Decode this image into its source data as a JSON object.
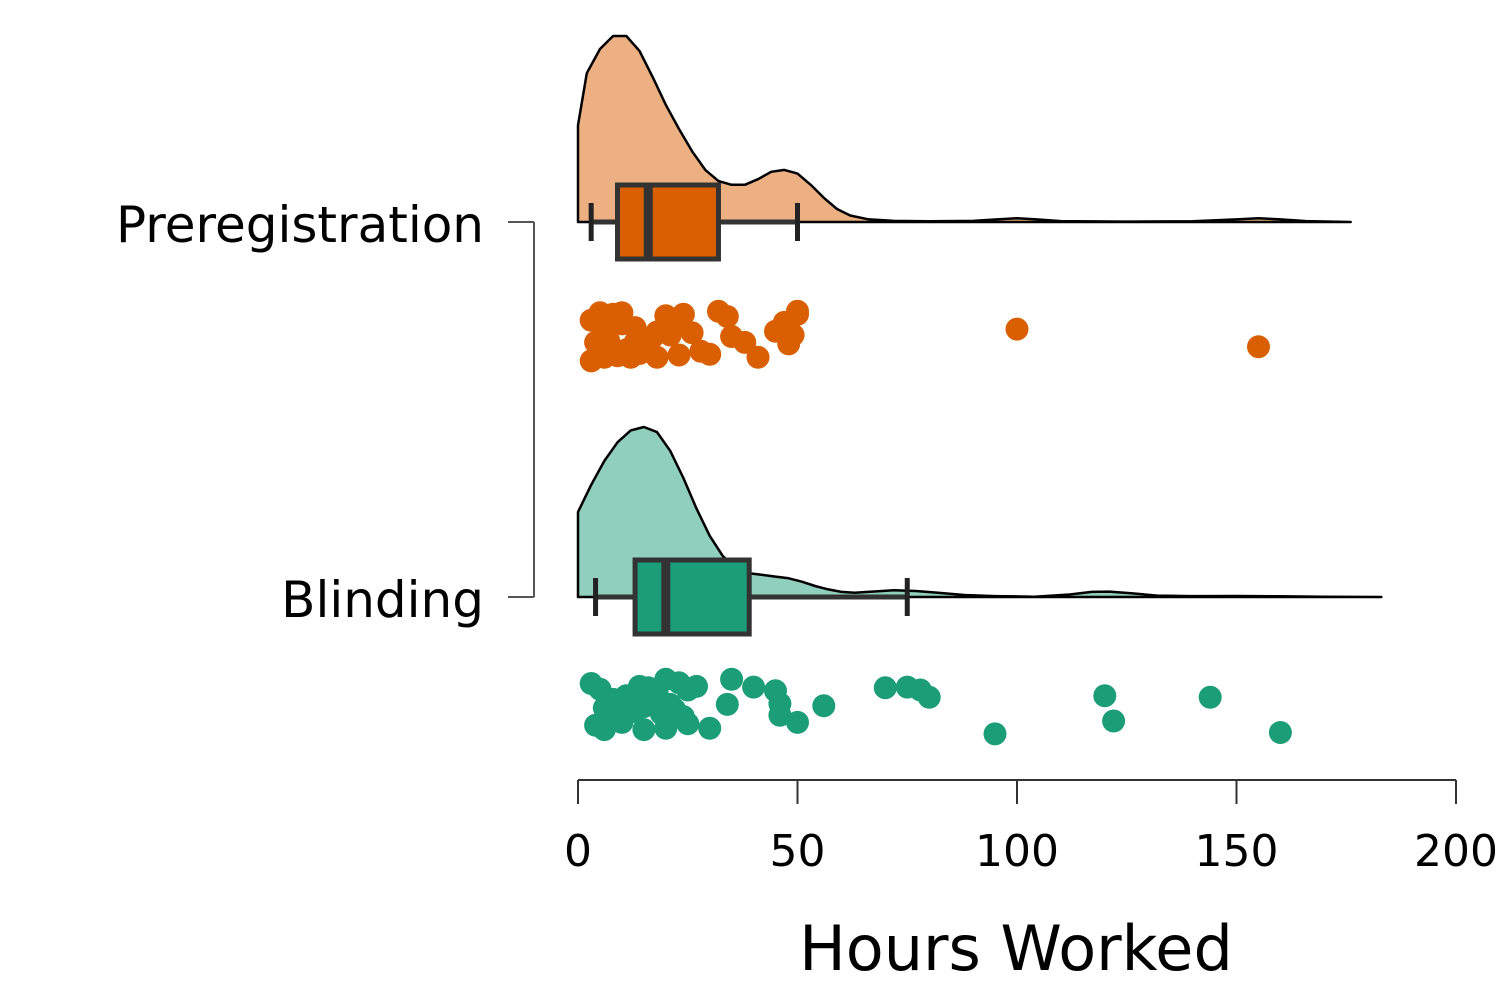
{
  "chart_data": {
    "type": "raincloud",
    "xlabel": "Hours Worked",
    "xlim": [
      0,
      200
    ],
    "xticks": [
      0,
      50,
      100,
      150,
      200
    ],
    "groups": [
      {
        "name": "Preregistration",
        "fill": "#d95f02",
        "cloud_fill": "#ecb083",
        "box": {
          "whisker_low": 3,
          "q1": 9,
          "median": 16,
          "q3": 32,
          "whisker_high": 50,
          "mean": 14
        },
        "density": [
          [
            0,
            0.52
          ],
          [
            2,
            0.8
          ],
          [
            5,
            0.93
          ],
          [
            8,
            1.0
          ],
          [
            11,
            1.0
          ],
          [
            14,
            0.92
          ],
          [
            17,
            0.78
          ],
          [
            20,
            0.63
          ],
          [
            23,
            0.5
          ],
          [
            26,
            0.38
          ],
          [
            29,
            0.28
          ],
          [
            32,
            0.22
          ],
          [
            35,
            0.2
          ],
          [
            38,
            0.2
          ],
          [
            41,
            0.23
          ],
          [
            44,
            0.27
          ],
          [
            47,
            0.28
          ],
          [
            50,
            0.26
          ],
          [
            53,
            0.2
          ],
          [
            56,
            0.13
          ],
          [
            59,
            0.07
          ],
          [
            62,
            0.035
          ],
          [
            66,
            0.015
          ],
          [
            72,
            0.006
          ],
          [
            80,
            0.004
          ],
          [
            90,
            0.006
          ],
          [
            96,
            0.015
          ],
          [
            100,
            0.02
          ],
          [
            104,
            0.015
          ],
          [
            110,
            0.005
          ],
          [
            125,
            0.002
          ],
          [
            140,
            0.004
          ],
          [
            150,
            0.014
          ],
          [
            155,
            0.02
          ],
          [
            160,
            0.014
          ],
          [
            166,
            0.005
          ],
          [
            176,
            0.0
          ]
        ],
        "points": [
          [
            5,
            0.2
          ],
          [
            8,
            0.22
          ],
          [
            10,
            0.2
          ],
          [
            3,
            0.3
          ],
          [
            6,
            0.44
          ],
          [
            10,
            0.35
          ],
          [
            13,
            0.4
          ],
          [
            4,
            0.6
          ],
          [
            7,
            0.72
          ],
          [
            11,
            0.7
          ],
          [
            14,
            0.75
          ],
          [
            15,
            0.58
          ],
          [
            17,
            0.53
          ],
          [
            18,
            0.46
          ],
          [
            16,
            0.62
          ],
          [
            9,
            0.78
          ],
          [
            12,
            0.8
          ],
          [
            3,
            0.85
          ],
          [
            6,
            0.8
          ],
          [
            20,
            0.24
          ],
          [
            22,
            0.36
          ],
          [
            24,
            0.22
          ],
          [
            26,
            0.47
          ],
          [
            23,
            0.77
          ],
          [
            28,
            0.72
          ],
          [
            30,
            0.76
          ],
          [
            32,
            0.18
          ],
          [
            34,
            0.25
          ],
          [
            35,
            0.52
          ],
          [
            38,
            0.6
          ],
          [
            41,
            0.8
          ],
          [
            45,
            0.45
          ],
          [
            47,
            0.33
          ],
          [
            48,
            0.62
          ],
          [
            49,
            0.5
          ],
          [
            50,
            0.18
          ],
          [
            50,
            0.22
          ],
          [
            100,
            0.42
          ],
          [
            155,
            0.66
          ],
          [
            21,
            0.5
          ],
          [
            13,
            0.6
          ],
          [
            18,
            0.8
          ],
          [
            7,
            0.58
          ]
        ]
      },
      {
        "name": "Blinding",
        "fill": "#1b9e77",
        "cloud_fill": "#8fcfbb",
        "box": {
          "whisker_low": 4,
          "q1": 13,
          "median": 20,
          "q3": 39,
          "whisker_high": 75,
          "mean": 18
        },
        "density": [
          [
            0,
            0.5
          ],
          [
            3,
            0.66
          ],
          [
            6,
            0.8
          ],
          [
            9,
            0.91
          ],
          [
            12,
            0.98
          ],
          [
            15,
            1.0
          ],
          [
            18,
            0.97
          ],
          [
            21,
            0.86
          ],
          [
            24,
            0.7
          ],
          [
            27,
            0.52
          ],
          [
            30,
            0.36
          ],
          [
            33,
            0.24
          ],
          [
            36,
            0.17
          ],
          [
            39,
            0.14
          ],
          [
            42,
            0.13
          ],
          [
            45,
            0.12
          ],
          [
            48,
            0.11
          ],
          [
            51,
            0.09
          ],
          [
            54,
            0.065
          ],
          [
            57,
            0.045
          ],
          [
            60,
            0.03
          ],
          [
            63,
            0.025
          ],
          [
            67,
            0.032
          ],
          [
            72,
            0.04
          ],
          [
            77,
            0.035
          ],
          [
            82,
            0.025
          ],
          [
            88,
            0.012
          ],
          [
            95,
            0.005
          ],
          [
            104,
            0.002
          ],
          [
            112,
            0.015
          ],
          [
            117,
            0.03
          ],
          [
            121,
            0.032
          ],
          [
            126,
            0.022
          ],
          [
            132,
            0.008
          ],
          [
            140,
            0.005
          ],
          [
            150,
            0.006
          ],
          [
            160,
            0.004
          ],
          [
            170,
            0.002
          ],
          [
            183,
            0.0
          ]
        ],
        "points": [
          [
            3,
            0.16
          ],
          [
            5,
            0.24
          ],
          [
            8,
            0.38
          ],
          [
            6,
            0.5
          ],
          [
            11,
            0.33
          ],
          [
            14,
            0.2
          ],
          [
            16,
            0.22
          ],
          [
            18,
            0.28
          ],
          [
            20,
            0.1
          ],
          [
            23,
            0.15
          ],
          [
            25,
            0.25
          ],
          [
            27,
            0.2
          ],
          [
            7,
            0.64
          ],
          [
            9,
            0.6
          ],
          [
            13,
            0.55
          ],
          [
            15,
            0.48
          ],
          [
            17,
            0.42
          ],
          [
            19,
            0.58
          ],
          [
            21,
            0.45
          ],
          [
            22,
            0.52
          ],
          [
            24,
            0.62
          ],
          [
            4,
            0.74
          ],
          [
            6,
            0.8
          ],
          [
            10,
            0.7
          ],
          [
            15,
            0.8
          ],
          [
            20,
            0.78
          ],
          [
            25,
            0.72
          ],
          [
            30,
            0.78
          ],
          [
            34,
            0.45
          ],
          [
            35,
            0.1
          ],
          [
            40,
            0.21
          ],
          [
            45,
            0.26
          ],
          [
            46,
            0.44
          ],
          [
            46,
            0.6
          ],
          [
            50,
            0.7
          ],
          [
            56,
            0.47
          ],
          [
            70,
            0.22
          ],
          [
            75,
            0.21
          ],
          [
            78,
            0.25
          ],
          [
            80,
            0.35
          ],
          [
            95,
            0.86
          ],
          [
            120,
            0.33
          ],
          [
            122,
            0.68
          ],
          [
            144,
            0.35
          ],
          [
            160,
            0.84
          ],
          [
            12,
            0.5
          ]
        ]
      }
    ],
    "bracket": true
  }
}
